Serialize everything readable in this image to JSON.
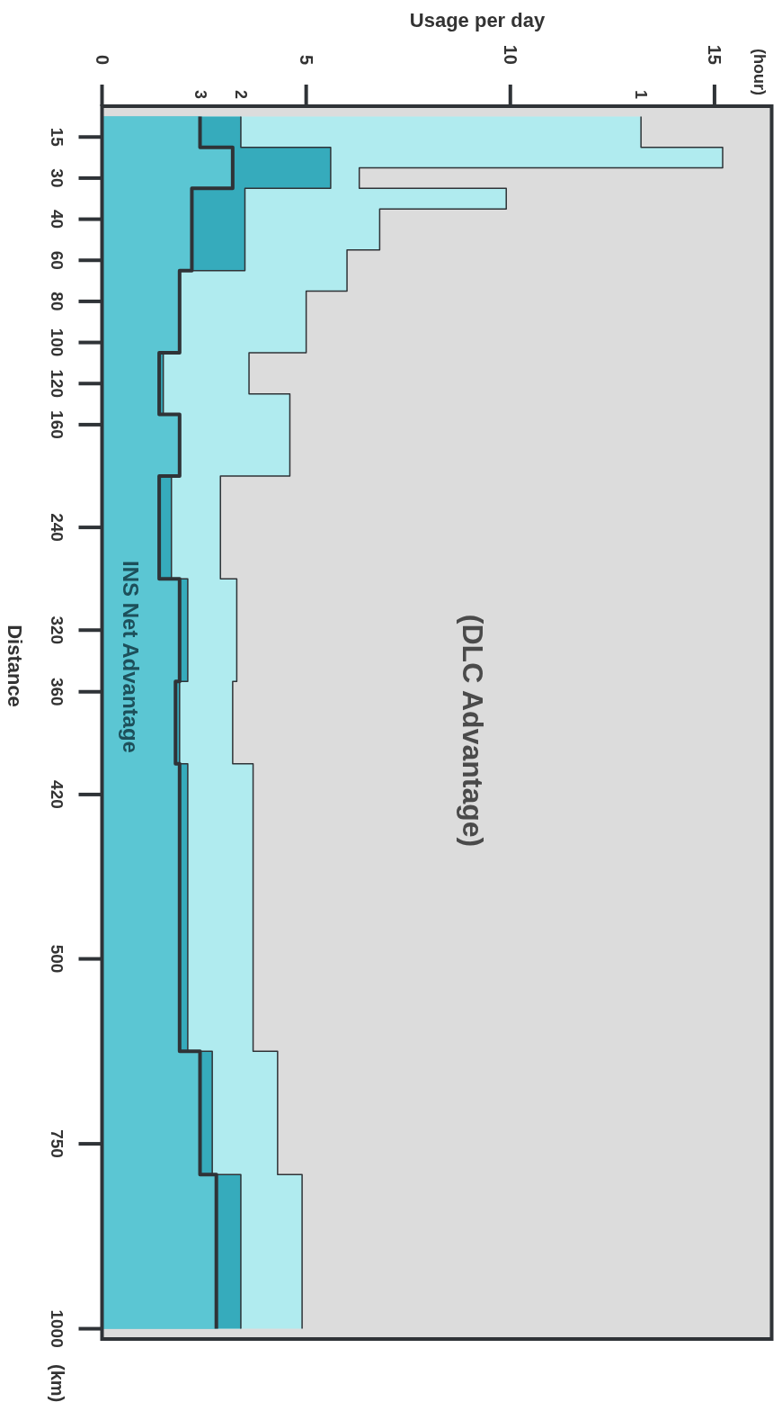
{
  "chart_data": {
    "type": "area",
    "orientation": "horizontal",
    "ylabel": "Distance",
    "xlabel": "Usage per day",
    "categories": [
      null,
      "15",
      null,
      "30",
      null,
      "40",
      null,
      "60",
      null,
      "80",
      null,
      "100",
      null,
      "120",
      null,
      "160",
      null,
      null,
      null,
      null,
      "240",
      null,
      null,
      null,
      null,
      "320",
      null,
      null,
      "360",
      null,
      null,
      null,
      null,
      "420",
      null,
      null,
      null,
      null,
      null,
      null,
      null,
      "500",
      null,
      null,
      null,
      null,
      null,
      null,
      null,
      null,
      "750",
      null,
      null,
      null,
      null,
      null,
      null,
      null,
      null,
      "1000"
    ],
    "xlim": [
      0,
      16.4
    ],
    "xticks": [
      0,
      5,
      10,
      15
    ],
    "series": [
      {
        "name": "1",
        "color": "#b0ebef",
        "values": [
          13.2,
          13.2,
          15.2,
          6.3,
          9.9,
          6.8,
          6.8,
          6.0,
          6.0,
          5.0,
          5.0,
          5.0,
          3.6,
          3.6,
          4.6,
          4.6,
          4.6,
          4.6,
          2.9,
          2.9,
          2.9,
          2.9,
          2.9,
          3.3,
          3.3,
          3.3,
          3.3,
          3.3,
          3.2,
          3.2,
          3.2,
          3.2,
          3.7,
          3.7,
          3.7,
          3.7,
          3.7,
          3.7,
          3.7,
          3.7,
          3.7,
          3.7,
          3.7,
          3.7,
          3.7,
          3.7,
          4.3,
          4.3,
          4.3,
          4.3,
          4.3,
          4.3,
          4.9,
          4.9,
          4.9,
          4.9,
          4.9,
          4.9,
          4.9,
          4.9
        ]
      },
      {
        "name": "2",
        "color": "#36abbc",
        "values": [
          3.4,
          3.4,
          5.6,
          5.6,
          3.5,
          3.5,
          3.5,
          3.5,
          1.9,
          1.9,
          1.9,
          1.9,
          1.5,
          1.5,
          1.5,
          1.9,
          1.9,
          1.9,
          1.7,
          1.7,
          1.7,
          1.7,
          1.7,
          2.1,
          2.1,
          2.1,
          2.1,
          2.1,
          1.9,
          1.9,
          1.9,
          1.9,
          2.1,
          2.1,
          2.1,
          2.1,
          2.1,
          2.1,
          2.1,
          2.1,
          2.1,
          2.1,
          2.1,
          2.1,
          2.1,
          2.1,
          2.7,
          2.7,
          2.7,
          2.7,
          2.7,
          2.7,
          3.4,
          3.4,
          3.4,
          3.4,
          3.4,
          3.4,
          3.4,
          3.4
        ]
      },
      {
        "name": "3",
        "color": "#5bc6d3",
        "values": [
          2.4,
          2.4,
          3.2,
          3.2,
          2.2,
          2.2,
          2.2,
          2.2,
          1.9,
          1.9,
          1.9,
          1.9,
          1.4,
          1.4,
          1.4,
          1.9,
          1.9,
          1.9,
          1.4,
          1.4,
          1.4,
          1.4,
          1.4,
          1.9,
          1.9,
          1.9,
          1.9,
          1.9,
          1.8,
          1.8,
          1.8,
          1.8,
          1.9,
          1.9,
          1.9,
          1.9,
          1.9,
          1.9,
          1.9,
          1.9,
          1.9,
          1.9,
          1.9,
          1.9,
          1.9,
          1.9,
          2.4,
          2.4,
          2.4,
          2.4,
          2.4,
          2.4,
          2.8,
          2.8,
          2.8,
          2.8,
          2.8,
          2.8,
          2.8,
          2.8
        ]
      }
    ],
    "annotations": [
      "(hour)",
      "(km)",
      "INS Net Advantage",
      "(DLC Advantage)"
    ],
    "grid": false,
    "legend": false,
    "line_style": "solid",
    "marker": "none"
  }
}
